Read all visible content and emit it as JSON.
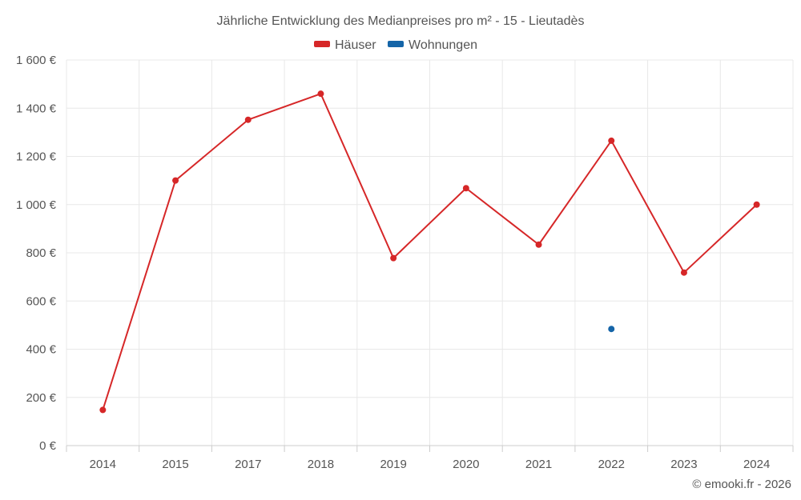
{
  "chart_data": {
    "type": "line",
    "title": "Jährliche Entwicklung des Medianpreises pro m² - 15 - Lieutadès",
    "categories": [
      "2014",
      "2015",
      "2017",
      "2018",
      "2019",
      "2020",
      "2021",
      "2022",
      "2023",
      "2024"
    ],
    "series": [
      {
        "name": "Häuser",
        "color": "#d62728",
        "values": [
          148,
          1100,
          1352,
          1460,
          778,
          1068,
          834,
          1265,
          718,
          1000
        ]
      },
      {
        "name": "Wohnungen",
        "color": "#1565a8",
        "values": [
          null,
          null,
          null,
          null,
          null,
          null,
          null,
          484,
          null,
          null
        ]
      }
    ],
    "yticks": [
      "0 €",
      "200 €",
      "400 €",
      "600 €",
      "800 €",
      "1 000 €",
      "1 200 €",
      "1 400 €",
      "1 600 €"
    ],
    "ylim": [
      0,
      1600
    ],
    "grid": true,
    "legend_position": "top-center"
  },
  "credit": "© emooki.fr - 2026"
}
